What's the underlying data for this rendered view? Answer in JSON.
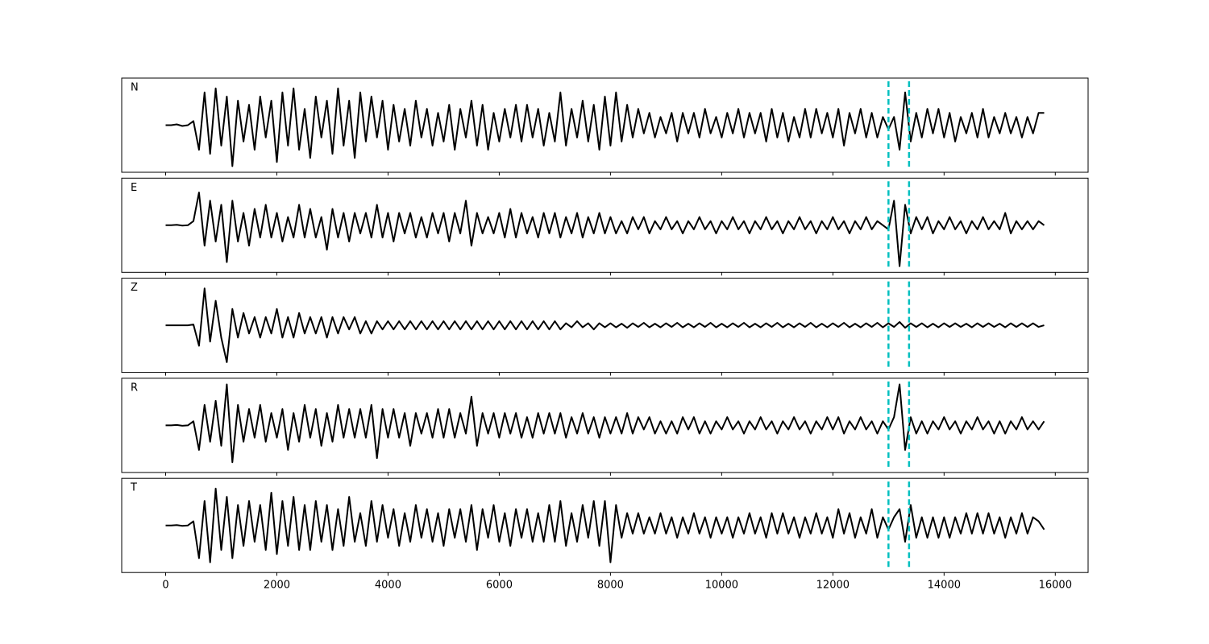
{
  "chart_data": {
    "type": "line",
    "x": [
      0,
      100,
      200,
      300,
      400,
      500,
      600,
      700,
      800,
      900,
      1000,
      1100,
      1200,
      1300,
      1400,
      1500,
      1600,
      1700,
      1800,
      1900,
      2000,
      2100,
      2200,
      2300,
      2400,
      2500,
      2600,
      2700,
      2800,
      2900,
      3000,
      3100,
      3200,
      3300,
      3400,
      3500,
      3600,
      3700,
      3800,
      3900,
      4000,
      4100,
      4200,
      4300,
      4400,
      4500,
      4600,
      4700,
      4800,
      4900,
      5000,
      5100,
      5200,
      5300,
      5400,
      5500,
      5600,
      5700,
      5800,
      5900,
      6000,
      6100,
      6200,
      6300,
      6400,
      6500,
      6600,
      6700,
      6800,
      6900,
      7000,
      7100,
      7200,
      7300,
      7400,
      7500,
      7600,
      7700,
      7800,
      7900,
      8000,
      8100,
      8200,
      8300,
      8400,
      8500,
      8600,
      8700,
      8800,
      8900,
      9000,
      9100,
      9200,
      9300,
      9400,
      9500,
      9600,
      9700,
      9800,
      9900,
      10000,
      10100,
      10200,
      10300,
      10400,
      10500,
      10600,
      10700,
      10800,
      10900,
      11000,
      11100,
      11200,
      11300,
      11400,
      11500,
      11600,
      11700,
      11800,
      11900,
      12000,
      12100,
      12200,
      12300,
      12400,
      12500,
      12600,
      12700,
      12800,
      12900,
      13000,
      13100,
      13200,
      13300,
      13400,
      13500,
      13600,
      13700,
      13800,
      13900,
      14000,
      14100,
      14200,
      14300,
      14400,
      14500,
      14600,
      14700,
      14800,
      14900,
      15000,
      15100,
      15200,
      15300,
      15400,
      15500,
      15600,
      15700,
      15800
    ],
    "series": [
      {
        "name": "N",
        "color": "#000000",
        "values": [
          0,
          0,
          0.02,
          -0.02,
          0,
          0.1,
          -0.6,
          0.8,
          -0.7,
          0.9,
          -0.5,
          0.7,
          -1.0,
          0.6,
          -0.4,
          0.5,
          -0.6,
          0.7,
          -0.3,
          0.6,
          -0.9,
          0.8,
          -0.5,
          0.9,
          -0.6,
          0.4,
          -0.8,
          0.7,
          -0.3,
          0.6,
          -0.7,
          0.9,
          -0.5,
          0.6,
          -0.8,
          0.8,
          -0.4,
          0.7,
          -0.3,
          0.6,
          -0.6,
          0.5,
          -0.4,
          0.4,
          -0.5,
          0.6,
          -0.3,
          0.4,
          -0.5,
          0.3,
          -0.4,
          0.5,
          -0.6,
          0.4,
          -0.3,
          0.6,
          -0.5,
          0.5,
          -0.6,
          0.3,
          -0.4,
          0.4,
          -0.3,
          0.5,
          -0.4,
          0.5,
          -0.3,
          0.4,
          -0.5,
          0.3,
          -0.4,
          0.8,
          -0.5,
          0.4,
          -0.3,
          0.6,
          -0.4,
          0.5,
          -0.6,
          0.7,
          -0.5,
          0.8,
          -0.4,
          0.5,
          -0.3,
          0.4,
          -0.2,
          0.3,
          -0.3,
          0.2,
          -0.2,
          0.3,
          -0.4,
          0.3,
          -0.2,
          0.3,
          -0.3,
          0.4,
          -0.2,
          0.2,
          -0.3,
          0.3,
          -0.2,
          0.4,
          -0.3,
          0.3,
          -0.2,
          0.3,
          -0.4,
          0.4,
          -0.3,
          0.3,
          -0.4,
          0.2,
          -0.3,
          0.4,
          -0.3,
          0.4,
          -0.2,
          0.3,
          -0.3,
          0.4,
          -0.5,
          0.3,
          -0.2,
          0.4,
          -0.3,
          0.3,
          -0.3,
          0.2,
          -0.1,
          0.2,
          -0.6,
          0.8,
          -0.4,
          0.3,
          -0.3,
          0.4,
          -0.2,
          0.4,
          -0.3,
          0.3,
          -0.4,
          0.2,
          -0.2,
          0.3,
          -0.3,
          0.4,
          -0.3,
          0.2,
          -0.2,
          0.3,
          -0.2,
          0.2,
          -0.3,
          0.2,
          -0.2,
          0.3,
          0.3
        ]
      },
      {
        "name": "E",
        "color": "#000000",
        "values": [
          0,
          0,
          0.01,
          -0.01,
          0,
          0.1,
          0.8,
          -0.5,
          0.6,
          -0.4,
          0.5,
          -0.9,
          0.6,
          -0.4,
          0.3,
          -0.5,
          0.4,
          -0.3,
          0.5,
          -0.3,
          0.3,
          -0.4,
          0.2,
          -0.3,
          0.5,
          -0.3,
          0.4,
          -0.3,
          0.2,
          -0.6,
          0.4,
          -0.3,
          0.3,
          -0.4,
          0.3,
          -0.2,
          0.3,
          -0.3,
          0.5,
          -0.3,
          0.3,
          -0.4,
          0.3,
          -0.2,
          0.3,
          -0.3,
          0.2,
          -0.3,
          0.3,
          -0.2,
          0.3,
          -0.4,
          0.3,
          -0.2,
          0.6,
          -0.5,
          0.3,
          -0.2,
          0.2,
          -0.2,
          0.3,
          -0.3,
          0.4,
          -0.3,
          0.3,
          -0.2,
          0.2,
          -0.3,
          0.3,
          -0.2,
          0.3,
          -0.3,
          0.2,
          -0.2,
          0.3,
          -0.3,
          0.2,
          -0.2,
          0.3,
          -0.2,
          0.2,
          -0.2,
          0.1,
          -0.2,
          0.2,
          -0.1,
          0.2,
          -0.2,
          0.1,
          -0.1,
          0.2,
          -0.1,
          0.1,
          -0.2,
          0.1,
          -0.1,
          0.2,
          -0.1,
          0.1,
          -0.2,
          0.1,
          -0.1,
          0.2,
          -0.1,
          0.1,
          -0.2,
          0.1,
          -0.1,
          0.2,
          -0.1,
          0.1,
          -0.2,
          0.1,
          -0.1,
          0.2,
          -0.1,
          0.1,
          -0.2,
          0.1,
          -0.1,
          0.2,
          -0.1,
          0.1,
          -0.2,
          0.1,
          -0.1,
          0.2,
          -0.1,
          0.1,
          0,
          -0.1,
          0.6,
          -1.0,
          0.5,
          -0.2,
          0.2,
          -0.1,
          0.2,
          -0.2,
          0.1,
          -0.1,
          0.2,
          -0.1,
          0.1,
          -0.2,
          0.1,
          -0.1,
          0.2,
          -0.1,
          0.1,
          -0.1,
          0.3,
          -0.2,
          0.1,
          -0.1,
          0.1,
          -0.1,
          0.1,
          0
        ]
      },
      {
        "name": "Z",
        "color": "#000000",
        "values": [
          0,
          0,
          0,
          0,
          0,
          0.02,
          -0.5,
          0.9,
          -0.4,
          0.6,
          -0.3,
          -0.9,
          0.4,
          -0.3,
          0.3,
          -0.2,
          0.2,
          -0.3,
          0.2,
          -0.2,
          0.4,
          -0.3,
          0.2,
          -0.3,
          0.3,
          -0.2,
          0.2,
          -0.2,
          0.2,
          -0.3,
          0.2,
          -0.2,
          0.2,
          -0.1,
          0.2,
          -0.2,
          0.1,
          -0.2,
          0.1,
          -0.1,
          0.1,
          -0.1,
          0.1,
          -0.1,
          0.1,
          -0.1,
          0.1,
          -0.1,
          0.1,
          -0.1,
          0.1,
          -0.1,
          0.1,
          -0.1,
          0.1,
          -0.1,
          0.1,
          -0.1,
          0.1,
          -0.1,
          0.1,
          -0.1,
          0.1,
          -0.1,
          0.1,
          -0.1,
          0.1,
          -0.1,
          0.1,
          -0.1,
          0.1,
          -0.1,
          0.05,
          -0.05,
          0.1,
          -0.05,
          0.05,
          -0.1,
          0.05,
          -0.05,
          0.05,
          -0.05,
          0.04,
          -0.06,
          0.05,
          -0.04,
          0.06,
          -0.05,
          0.04,
          -0.05,
          0.05,
          -0.04,
          0.06,
          -0.05,
          0.04,
          -0.05,
          0.05,
          -0.04,
          0.06,
          -0.05,
          0.04,
          -0.05,
          0.05,
          -0.04,
          0.06,
          -0.05,
          0.04,
          -0.05,
          0.05,
          -0.04,
          0.06,
          -0.05,
          0.04,
          -0.05,
          0.05,
          -0.04,
          0.06,
          -0.05,
          0.04,
          -0.05,
          0.05,
          -0.04,
          0.06,
          -0.05,
          0.04,
          -0.05,
          0.05,
          -0.04,
          0.06,
          -0.05,
          0.05,
          -0.04,
          0.08,
          -0.06,
          0.05,
          -0.04,
          0.05,
          -0.05,
          0.04,
          -0.05,
          0.05,
          -0.04,
          0.05,
          -0.04,
          0.04,
          -0.05,
          0.05,
          -0.04,
          0.05,
          -0.04,
          0.04,
          -0.05,
          0.05,
          -0.04,
          0.05,
          -0.04,
          0.05,
          -0.04,
          0
        ]
      },
      {
        "name": "R",
        "color": "#000000",
        "values": [
          0,
          0,
          0.01,
          -0.01,
          0,
          0.1,
          -0.6,
          0.5,
          -0.4,
          0.6,
          -0.5,
          1.0,
          -0.9,
          0.5,
          -0.4,
          0.4,
          -0.3,
          0.5,
          -0.4,
          0.3,
          -0.3,
          0.4,
          -0.6,
          0.3,
          -0.4,
          0.5,
          -0.3,
          0.4,
          -0.5,
          0.3,
          -0.4,
          0.5,
          -0.3,
          0.4,
          -0.3,
          0.4,
          -0.3,
          0.5,
          -0.8,
          0.4,
          -0.3,
          0.4,
          -0.3,
          0.3,
          -0.5,
          0.3,
          -0.2,
          0.3,
          -0.3,
          0.4,
          -0.3,
          0.4,
          -0.3,
          0.3,
          -0.2,
          0.7,
          -0.5,
          0.3,
          -0.2,
          0.3,
          -0.3,
          0.3,
          -0.2,
          0.3,
          -0.3,
          0.2,
          -0.3,
          0.3,
          -0.2,
          0.3,
          -0.2,
          0.3,
          -0.3,
          0.2,
          -0.2,
          0.3,
          -0.2,
          0.2,
          -0.3,
          0.2,
          -0.2,
          0.2,
          -0.2,
          0.3,
          -0.2,
          0.2,
          -0.1,
          0.2,
          -0.2,
          0.1,
          -0.2,
          0.1,
          -0.2,
          0.2,
          -0.1,
          0.2,
          -0.2,
          0.1,
          -0.2,
          0.1,
          -0.1,
          0.2,
          -0.1,
          0.1,
          -0.2,
          0.1,
          -0.1,
          0.2,
          -0.1,
          0.1,
          -0.2,
          0.1,
          -0.1,
          0.2,
          -0.1,
          0.1,
          -0.2,
          0.1,
          -0.1,
          0.2,
          -0.1,
          0.2,
          -0.2,
          0.1,
          -0.1,
          0.2,
          -0.1,
          0.1,
          -0.2,
          0.1,
          -0.1,
          0.2,
          1.0,
          -0.6,
          0.2,
          -0.2,
          0.1,
          -0.2,
          0.1,
          -0.1,
          0.2,
          -0.1,
          0.1,
          -0.2,
          0.1,
          -0.1,
          0.2,
          -0.1,
          0.1,
          -0.2,
          0.1,
          -0.2,
          0.1,
          -0.1,
          0.2,
          -0.1,
          0.1,
          -0.1,
          0.1
        ]
      },
      {
        "name": "T",
        "color": "#000000",
        "values": [
          0,
          0,
          0.01,
          -0.01,
          0,
          0.1,
          -0.8,
          0.6,
          -0.9,
          0.9,
          -0.6,
          0.7,
          -0.8,
          0.5,
          -0.5,
          0.6,
          -0.4,
          0.5,
          -0.6,
          0.8,
          -0.7,
          0.6,
          -0.5,
          0.7,
          -0.6,
          0.5,
          -0.6,
          0.6,
          -0.4,
          0.5,
          -0.6,
          0.4,
          -0.5,
          0.7,
          -0.4,
          0.3,
          -0.5,
          0.6,
          -0.4,
          0.5,
          -0.3,
          0.4,
          -0.5,
          0.3,
          -0.4,
          0.5,
          -0.3,
          0.4,
          -0.4,
          0.3,
          -0.5,
          0.4,
          -0.3,
          0.4,
          -0.4,
          0.5,
          -0.6,
          0.4,
          -0.3,
          0.5,
          -0.4,
          0.3,
          -0.5,
          0.4,
          -0.3,
          0.4,
          -0.4,
          0.3,
          -0.4,
          0.5,
          -0.4,
          0.6,
          -0.5,
          0.3,
          -0.4,
          0.5,
          -0.3,
          0.6,
          -0.5,
          0.6,
          -0.9,
          0.5,
          -0.3,
          0.3,
          -0.2,
          0.3,
          -0.2,
          0.2,
          -0.2,
          0.3,
          -0.2,
          0.2,
          -0.3,
          0.2,
          -0.2,
          0.3,
          -0.2,
          0.2,
          -0.3,
          0.2,
          -0.2,
          0.2,
          -0.3,
          0.2,
          -0.2,
          0.3,
          -0.2,
          0.2,
          -0.3,
          0.3,
          -0.2,
          0.3,
          -0.2,
          0.2,
          -0.3,
          0.2,
          -0.2,
          0.3,
          -0.2,
          0.2,
          -0.3,
          0.4,
          -0.2,
          0.3,
          -0.3,
          0.2,
          -0.2,
          0.4,
          -0.3,
          0.2,
          -0.1,
          0.2,
          0.4,
          -0.4,
          0.5,
          -0.3,
          0.2,
          -0.3,
          0.2,
          -0.3,
          0.2,
          -0.3,
          0.2,
          -0.2,
          0.3,
          -0.2,
          0.3,
          -0.2,
          0.3,
          -0.2,
          0.2,
          -0.3,
          0.2,
          -0.2,
          0.3,
          -0.2,
          0.2,
          0.1,
          -0.1
        ]
      }
    ],
    "xlim": [
      -790,
      16590
    ],
    "xticks": [
      0,
      2000,
      4000,
      6000,
      8000,
      10000,
      12000,
      14000,
      16000
    ],
    "ylim": [
      -1.15,
      1.15
    ],
    "vlines": [
      13000,
      13370
    ],
    "vline_color": "#00bfbf",
    "grid": false
  }
}
